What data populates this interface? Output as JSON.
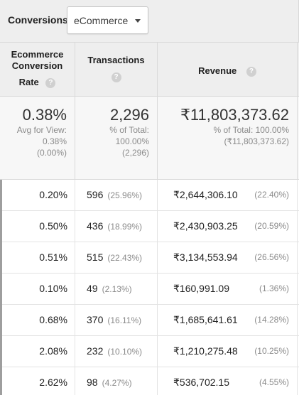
{
  "toolbar": {
    "label": "Conversions",
    "dropdown_value": "eCommerce"
  },
  "columns": {
    "conversion_rate": {
      "line1": "Ecommerce",
      "line2": "Conversion",
      "line3": "Rate",
      "help": "?"
    },
    "transactions": {
      "label": "Transactions",
      "help": "?"
    },
    "revenue": {
      "label": "Revenue",
      "help": "?"
    }
  },
  "summary": {
    "conversion_rate": {
      "value": "0.38%",
      "line1": "Avg for View:",
      "line2": "0.38%",
      "line3": "(0.00%)"
    },
    "transactions": {
      "value": "2,296",
      "line1": "% of Total:",
      "line2": "100.00%",
      "line3": "(2,296)"
    },
    "revenue": {
      "value": "₹11,803,373.62",
      "line1": "% of Total: 100.00%",
      "line2": "(₹11,803,373.62)"
    }
  },
  "rows": [
    {
      "rate": "0.20%",
      "transactions": "596",
      "transactions_pct": "(25.96%)",
      "revenue": "₹2,644,306.10",
      "revenue_pct": "(22.40%)"
    },
    {
      "rate": "0.50%",
      "transactions": "436",
      "transactions_pct": "(18.99%)",
      "revenue": "₹2,430,903.25",
      "revenue_pct": "(20.59%)"
    },
    {
      "rate": "0.51%",
      "transactions": "515",
      "transactions_pct": "(22.43%)",
      "revenue": "₹3,134,553.94",
      "revenue_pct": "(26.56%)"
    },
    {
      "rate": "0.10%",
      "transactions": "49",
      "transactions_pct": "(2.13%)",
      "revenue": "₹160,991.09",
      "revenue_pct": "(1.36%)"
    },
    {
      "rate": "0.68%",
      "transactions": "370",
      "transactions_pct": "(16.11%)",
      "revenue": "₹1,685,641.61",
      "revenue_pct": "(14.28%)"
    },
    {
      "rate": "2.08%",
      "transactions": "232",
      "transactions_pct": "(10.10%)",
      "revenue": "₹1,210,275.48",
      "revenue_pct": "(10.25%)"
    },
    {
      "rate": "2.62%",
      "transactions": "98",
      "transactions_pct": "(4.27%)",
      "revenue": "₹536,702.15",
      "revenue_pct": "(4.55%)"
    }
  ]
}
